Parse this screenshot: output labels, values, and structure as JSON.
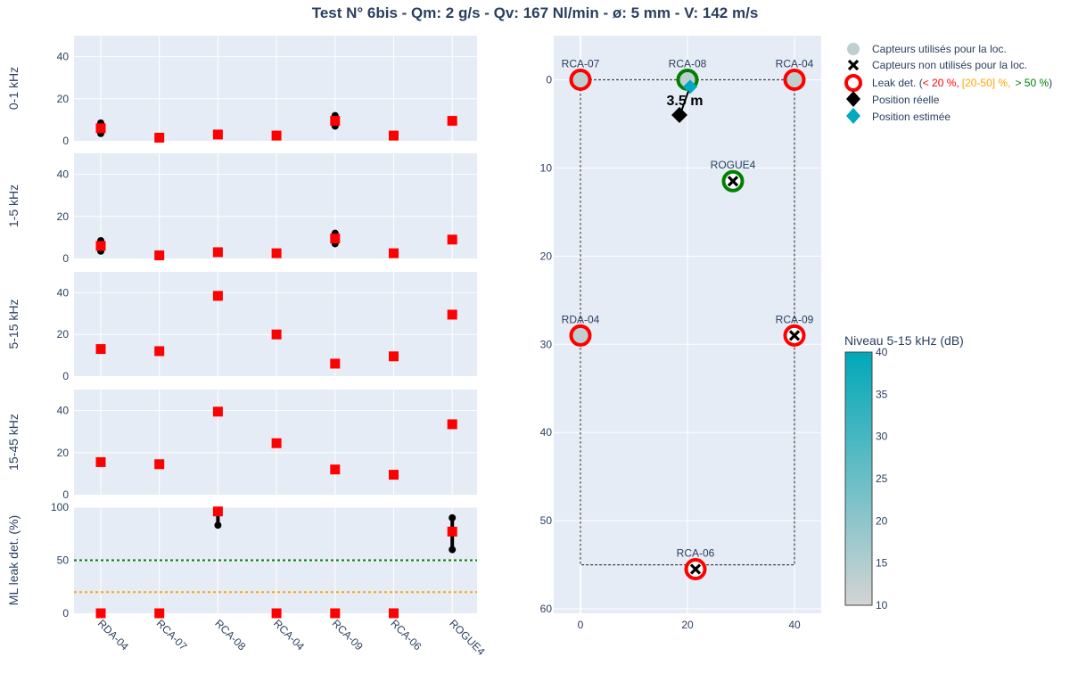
{
  "title": "Test N° 6bis - Qm: 2 g/s - Qv: 167 Nl/min - ø: 5 mm - V: 142 m/s",
  "colors": {
    "plot_bg": "#e5ecf6",
    "marker_red": "#ff0000",
    "bar_black": "#000000",
    "ref_green": "#008000",
    "ref_orange": "#ffa500",
    "leak_green": "#008000",
    "leak_red": "#ff0000",
    "estimate": "#00a8c0",
    "sensor_gray": "#bfcfcf",
    "text": "#2a3f5f"
  },
  "chart_data": [
    {
      "type": "scatter",
      "panel": "0-1 kHz",
      "ylabel": "0-1 kHz",
      "ylim": [
        0,
        50
      ],
      "yticks": [
        0,
        20,
        40
      ],
      "categories": [
        "RDA-04",
        "RCA-07",
        "RCA-08",
        "RCA-04",
        "RCA-09",
        "RCA-06",
        "ROGUE4"
      ],
      "values": [
        6,
        1.5,
        3,
        2.5,
        9.5,
        2.5,
        9.5
      ],
      "ranges": [
        [
          3.5,
          8.5
        ],
        null,
        null,
        null,
        [
          7,
          12
        ],
        null,
        null
      ]
    },
    {
      "type": "scatter",
      "panel": "1-5 kHz",
      "ylabel": "1-5 kHz",
      "ylim": [
        0,
        50
      ],
      "yticks": [
        0,
        20,
        40
      ],
      "categories": [
        "RDA-04",
        "RCA-07",
        "RCA-08",
        "RCA-04",
        "RCA-09",
        "RCA-06",
        "ROGUE4"
      ],
      "values": [
        6,
        1.5,
        3,
        2.5,
        9.5,
        2.5,
        9
      ],
      "ranges": [
        [
          3.5,
          8.5
        ],
        null,
        null,
        null,
        [
          7,
          12
        ],
        null,
        null
      ]
    },
    {
      "type": "scatter",
      "panel": "5-15 kHz",
      "ylabel": "5-15 kHz",
      "ylim": [
        0,
        50
      ],
      "yticks": [
        0,
        20,
        40
      ],
      "categories": [
        "RDA-04",
        "RCA-07",
        "RCA-08",
        "RCA-04",
        "RCA-09",
        "RCA-06",
        "ROGUE4"
      ],
      "values": [
        13,
        12,
        38.5,
        20,
        6,
        9.5,
        29.5
      ],
      "ranges": [
        null,
        null,
        null,
        null,
        null,
        null,
        null
      ]
    },
    {
      "type": "scatter",
      "panel": "15-45 kHz",
      "ylabel": "15-45 kHz",
      "ylim": [
        0,
        50
      ],
      "yticks": [
        0,
        20,
        40
      ],
      "categories": [
        "RDA-04",
        "RCA-07",
        "RCA-08",
        "RCA-04",
        "RCA-09",
        "RCA-06",
        "ROGUE4"
      ],
      "values": [
        15.5,
        14.5,
        39.5,
        24.5,
        12,
        9.5,
        33.5
      ],
      "ranges": [
        null,
        null,
        null,
        null,
        null,
        null,
        null
      ]
    },
    {
      "type": "scatter",
      "panel": "ML leak det.",
      "ylabel": "ML leak det. (%)",
      "ylim": [
        0,
        100
      ],
      "yticks": [
        0,
        50,
        100
      ],
      "categories": [
        "RDA-04",
        "RCA-07",
        "RCA-08",
        "RCA-04",
        "RCA-09",
        "RCA-06",
        "ROGUE4"
      ],
      "values": [
        0,
        0,
        96,
        0,
        0,
        0,
        77
      ],
      "ranges": [
        null,
        null,
        [
          83,
          96
        ],
        null,
        null,
        null,
        [
          60,
          90
        ]
      ],
      "ref_lines": [
        {
          "y": 50,
          "color": "#008000"
        },
        {
          "y": 20,
          "color": "#ffa500"
        }
      ]
    },
    {
      "type": "scatter",
      "panel": "map",
      "xlim": [
        -5,
        45
      ],
      "ylim": [
        60.5,
        -5
      ],
      "xticks": [
        0,
        20,
        40
      ],
      "yticks": [
        0,
        10,
        20,
        30,
        40,
        50,
        60
      ],
      "rectangle": {
        "x": [
          0,
          40
        ],
        "y": [
          0,
          55
        ]
      },
      "sensors": [
        {
          "label": "RCA-07",
          "x": 0,
          "y": 0,
          "used": true,
          "leak": "red"
        },
        {
          "label": "RCA-08",
          "x": 20,
          "y": 0,
          "used": true,
          "leak": "green"
        },
        {
          "label": "RCA-04",
          "x": 40,
          "y": 0,
          "used": true,
          "leak": "red"
        },
        {
          "label": "ROGUE4",
          "x": 28.5,
          "y": 11.5,
          "used": false,
          "leak": "green"
        },
        {
          "label": "RDA-04",
          "x": 0,
          "y": 29,
          "used": true,
          "leak": "red"
        },
        {
          "label": "RCA-09",
          "x": 40,
          "y": 29,
          "used": false,
          "leak": "red"
        },
        {
          "label": "RCA-06",
          "x": 21.5,
          "y": 55.5,
          "used": false,
          "leak": "red"
        }
      ],
      "real_position": {
        "x": 18.5,
        "y": 4
      },
      "estimated_position": {
        "x": 20.5,
        "y": 0.8
      },
      "distance_label": "3.5 m",
      "colorscale": {
        "title": "Niveau 5-15 kHz (dB)",
        "min": 10,
        "max": 40,
        "ticks": [
          10,
          15,
          20,
          25,
          30,
          35,
          40
        ],
        "from": "#d4d4d4",
        "to": "#00a8b8"
      }
    }
  ],
  "legend": {
    "used": "Capteurs utilisés pour la loc.",
    "unused": "Capteurs non utilisés pour la loc.",
    "leak_prefix": "Leak det. (",
    "leak_low": "< 20 %,",
    "leak_mid": "[20-50] %,",
    "leak_high": "> 50 %",
    "leak_suffix": ")",
    "real": "Position réelle",
    "estimated": "Position estimée"
  }
}
